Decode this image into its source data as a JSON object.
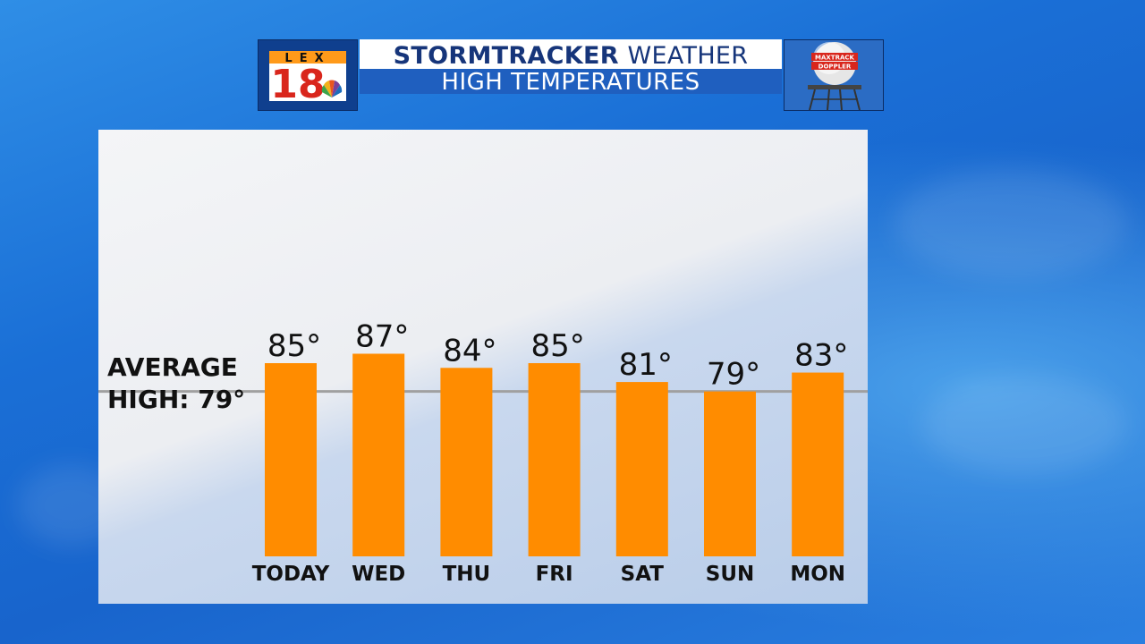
{
  "header": {
    "station_logo_text": "LEX",
    "station_logo_number": "18",
    "title_bold": "STORMTRACKER",
    "title_rest": "WEATHER",
    "subtitle": "HIGH TEMPERATURES",
    "radar_logo_top": "MAXTRACK",
    "radar_logo_bottom": "DOPPLER"
  },
  "average": {
    "line1": "AVERAGE",
    "line2": "HIGH: 79°"
  },
  "chart_data": {
    "type": "bar",
    "categories": [
      "TODAY",
      "WED",
      "THU",
      "FRI",
      "SAT",
      "SUN",
      "MON"
    ],
    "values": [
      85,
      87,
      84,
      85,
      81,
      79,
      83
    ],
    "data_labels": [
      "85°",
      "87°",
      "84°",
      "85°",
      "81°",
      "79°",
      "83°"
    ],
    "reference_line": 79,
    "ylim": [
      44,
      100
    ],
    "bar_color": "#ff8c00",
    "reference_line_color": "#a0a0a0"
  }
}
